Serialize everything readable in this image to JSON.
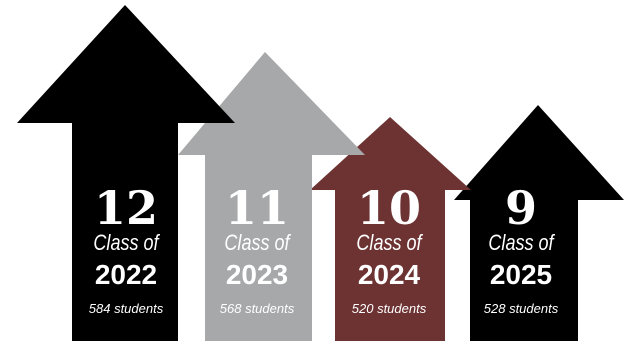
{
  "classes": [
    {
      "grade": "12",
      "class_of": "Class of",
      "year": "2022",
      "students": "584 students",
      "color": "#000000"
    },
    {
      "grade": "11",
      "class_of": "Class of",
      "year": "2023",
      "students": "568 students",
      "color": "#a7a8a9"
    },
    {
      "grade": "10",
      "class_of": "Class of",
      "year": "2024",
      "students": "520 students",
      "color": "#6d3232"
    },
    {
      "grade": "9",
      "class_of": "Class of",
      "year": "2025",
      "students": "528 students",
      "color": "#000000"
    }
  ]
}
